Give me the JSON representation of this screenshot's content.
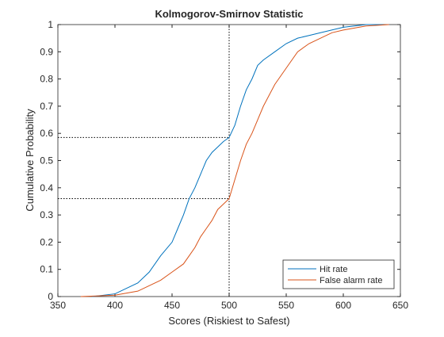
{
  "chart_data": {
    "type": "line",
    "title": "Kolmogorov-Smirnov Statistic",
    "xlabel": "Scores (Riskiest to Safest)",
    "ylabel": "Cumulative Probability",
    "xlim": [
      350,
      650
    ],
    "xticks": [
      350,
      400,
      450,
      500,
      550,
      600,
      650
    ],
    "ylim": [
      0,
      1
    ],
    "yticks": [
      0,
      0.1,
      0.2,
      0.3,
      0.4,
      0.5,
      0.6,
      0.7,
      0.8,
      0.9,
      1
    ],
    "grid": false,
    "legend": "southeast",
    "vline": 500,
    "hlines": [
      0.585,
      0.36
    ],
    "series": [
      {
        "name": "Hit rate",
        "color": "#0072BD",
        "x": [
          380,
          400,
          410,
          420,
          430,
          440,
          450,
          455,
          460,
          465,
          470,
          475,
          480,
          485,
          490,
          495,
          500,
          505,
          510,
          515,
          520,
          525,
          530,
          540,
          550,
          560,
          570,
          580,
          600,
          620,
          635
        ],
        "values": [
          0,
          0.01,
          0.03,
          0.05,
          0.09,
          0.15,
          0.2,
          0.25,
          0.3,
          0.36,
          0.4,
          0.45,
          0.5,
          0.53,
          0.55,
          0.57,
          0.585,
          0.63,
          0.7,
          0.76,
          0.8,
          0.85,
          0.87,
          0.9,
          0.93,
          0.95,
          0.96,
          0.97,
          0.99,
          1,
          1
        ]
      },
      {
        "name": "False alarm rate",
        "color": "#D95319",
        "x": [
          370,
          400,
          420,
          430,
          440,
          450,
          460,
          465,
          470,
          475,
          480,
          485,
          490,
          495,
          500,
          505,
          510,
          515,
          520,
          525,
          530,
          540,
          550,
          560,
          570,
          580,
          590,
          600,
          620,
          640
        ],
        "values": [
          0,
          0.005,
          0.02,
          0.04,
          0.06,
          0.09,
          0.12,
          0.15,
          0.18,
          0.22,
          0.25,
          0.28,
          0.32,
          0.34,
          0.36,
          0.43,
          0.5,
          0.56,
          0.6,
          0.65,
          0.7,
          0.78,
          0.84,
          0.9,
          0.93,
          0.95,
          0.97,
          0.98,
          0.995,
          1
        ]
      }
    ]
  }
}
